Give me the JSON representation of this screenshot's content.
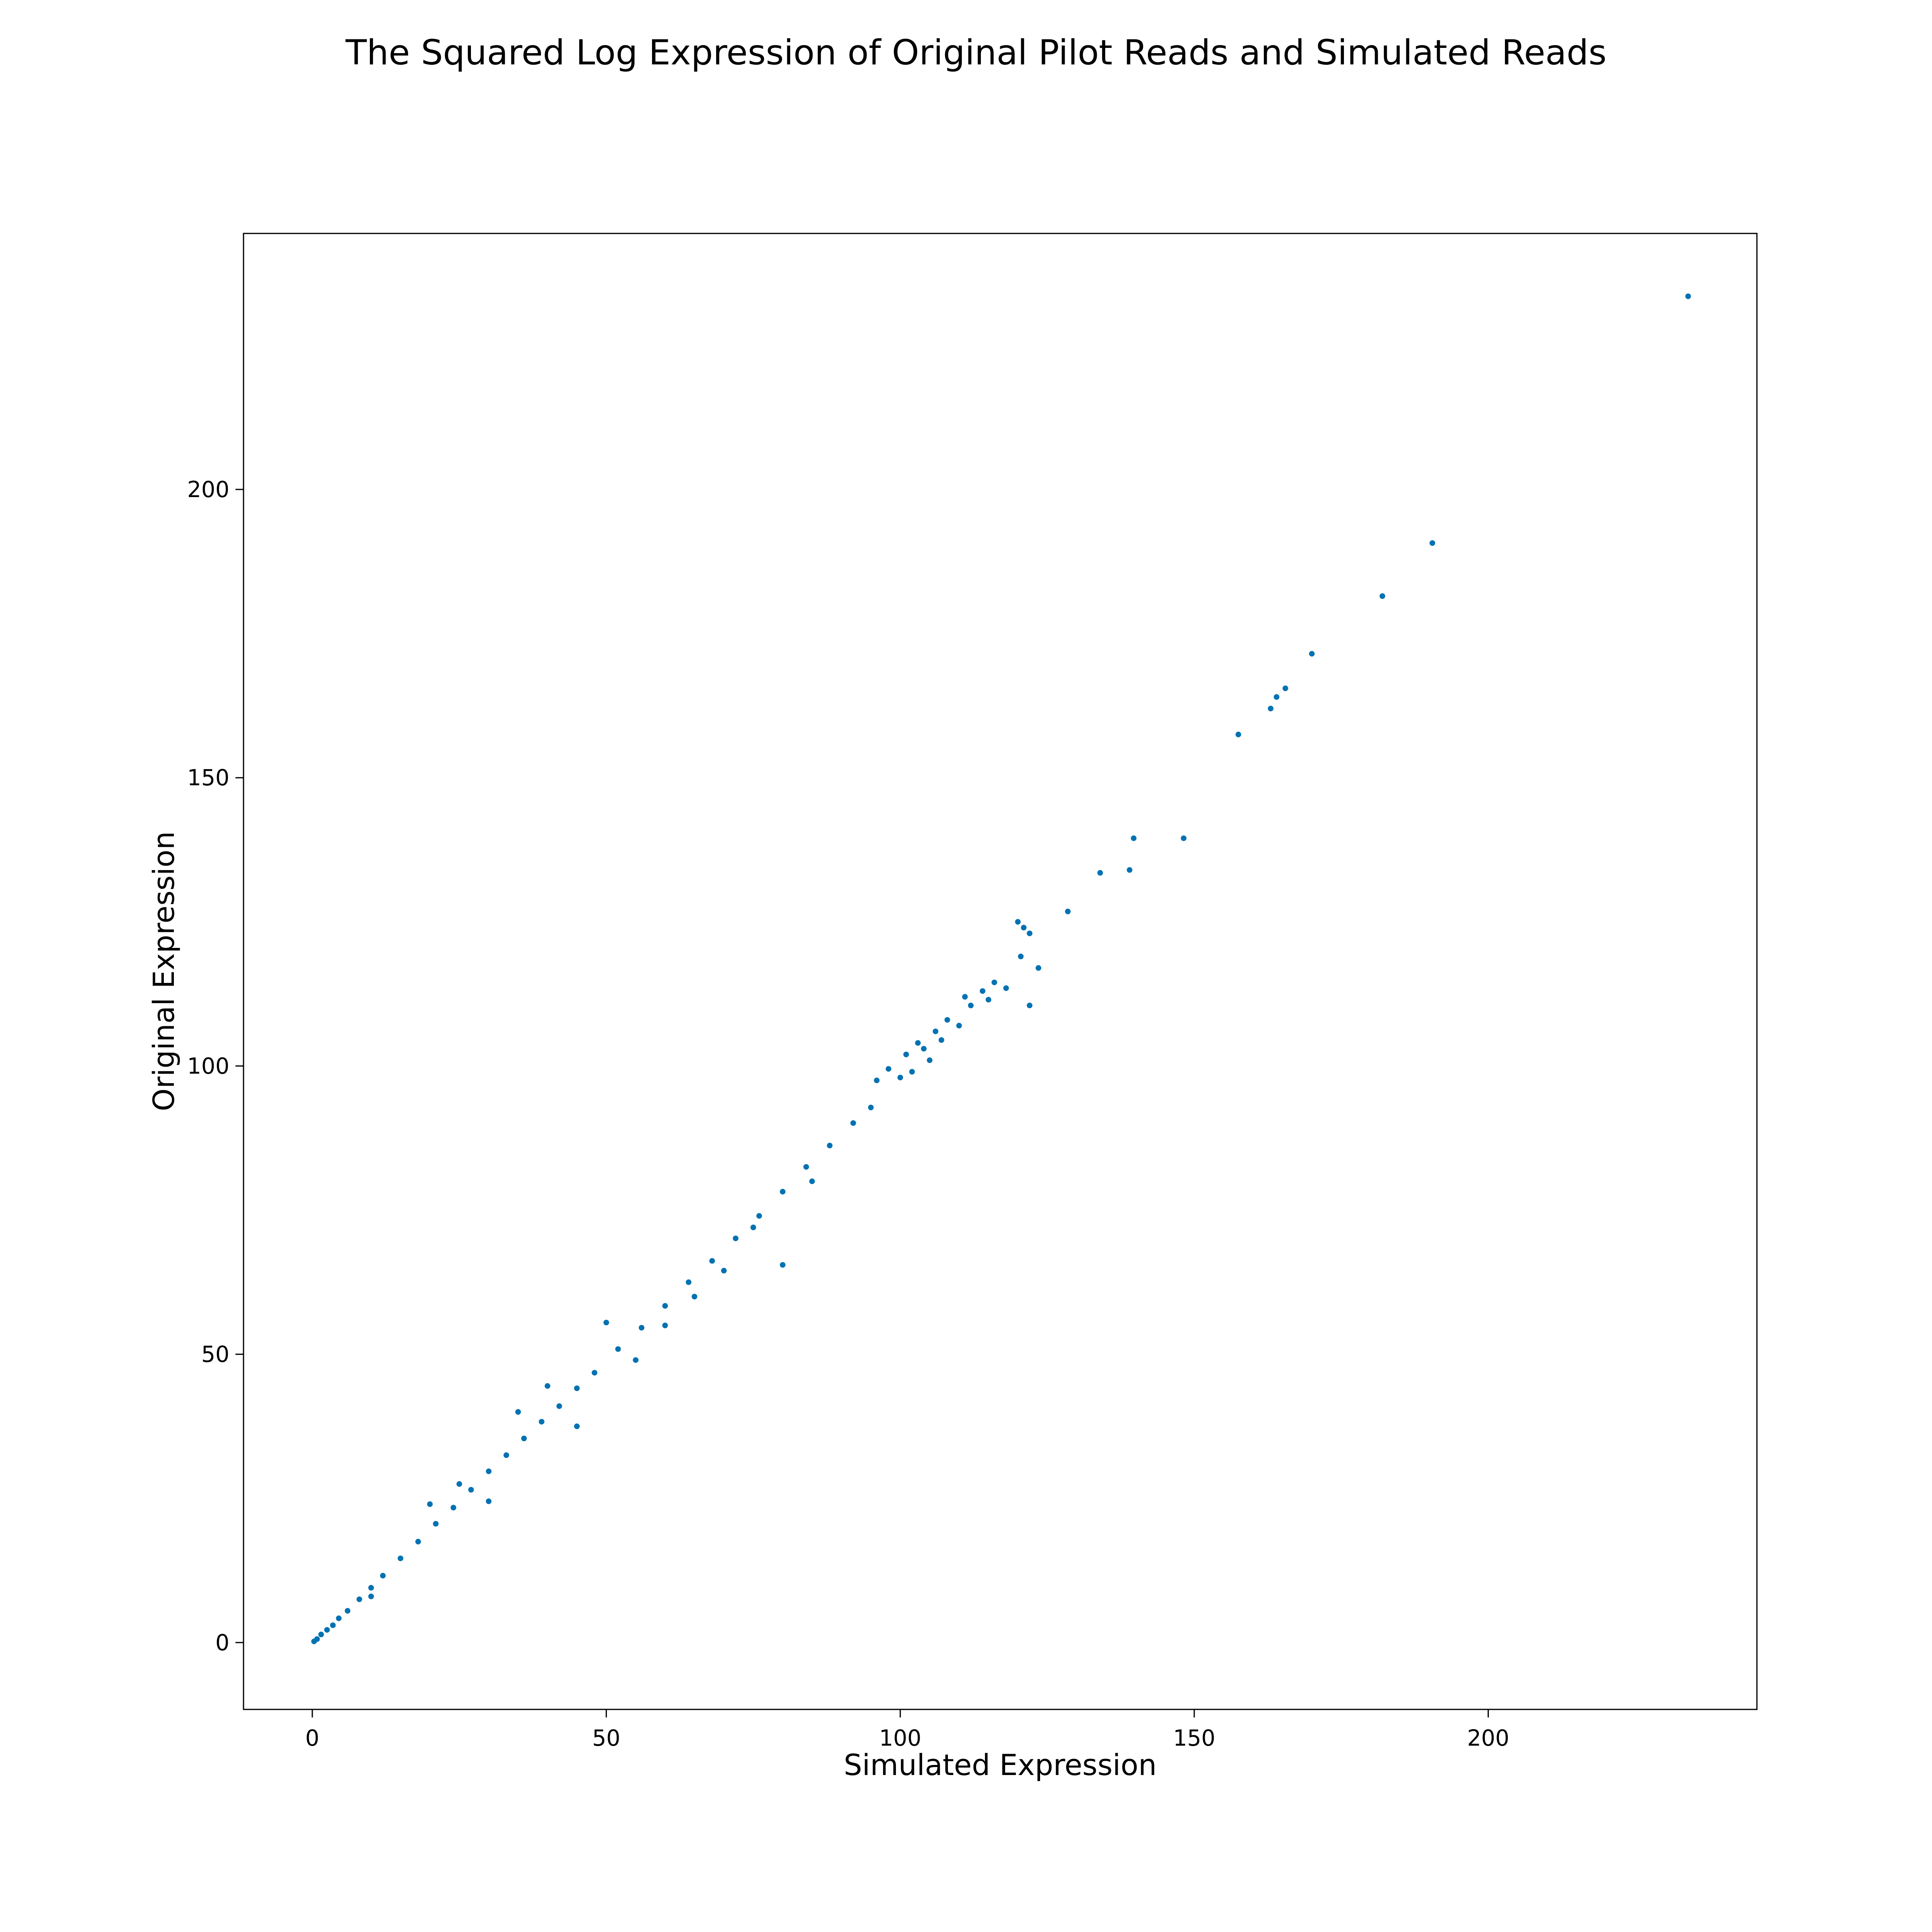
{
  "chart_data": {
    "type": "scatter",
    "title": "The Squared Log Expression of Original Pilot Reads and Simulated Reads",
    "xlabel": "Simulated Expression",
    "ylabel": "Original Expression",
    "xlim": [
      -11.7,
      245.7
    ],
    "ylim": [
      -11.6,
      244.4
    ],
    "xticks": [
      0,
      50,
      100,
      150,
      200
    ],
    "yticks": [
      0,
      50,
      100,
      150,
      200
    ],
    "grid": false,
    "marker_color": "#0072B2",
    "series": [
      {
        "points": [
          [
            0.3,
            0.2
          ],
          [
            0.8,
            0.6
          ],
          [
            1.5,
            1.4
          ],
          [
            2.5,
            2.2
          ],
          [
            3.5,
            3.0
          ],
          [
            4.5,
            4.2
          ],
          [
            6,
            5.5
          ],
          [
            8,
            7.5
          ],
          [
            10,
            9.5
          ],
          [
            12,
            11.6
          ],
          [
            15,
            14.6
          ],
          [
            18,
            17.5
          ],
          [
            21,
            20.6
          ],
          [
            24,
            23.4
          ],
          [
            27,
            26.5
          ],
          [
            30,
            29.7
          ],
          [
            33,
            32.5
          ],
          [
            36,
            35.4
          ],
          [
            39,
            38.3
          ],
          [
            42,
            41.0
          ],
          [
            45,
            44.1
          ],
          [
            48,
            46.8
          ],
          [
            52,
            50.9
          ],
          [
            56,
            54.6
          ],
          [
            60,
            58.4
          ],
          [
            64,
            62.5
          ],
          [
            68,
            66.2
          ],
          [
            72,
            70.1
          ],
          [
            76,
            74.0
          ],
          [
            80,
            78.2
          ],
          [
            84,
            82.5
          ],
          [
            88,
            86.2
          ],
          [
            92,
            90.1
          ],
          [
            95,
            92.8
          ],
          [
            96,
            97.5
          ],
          [
            98,
            99.5
          ],
          [
            100,
            98.0
          ],
          [
            101,
            102.0
          ],
          [
            102,
            99.0
          ],
          [
            103,
            104.0
          ],
          [
            104,
            103.0
          ],
          [
            105,
            101.0
          ],
          [
            106,
            106.0
          ],
          [
            107,
            104.5
          ],
          [
            108,
            108.0
          ],
          [
            110,
            107.0
          ],
          [
            111,
            112.0
          ],
          [
            112,
            110.5
          ],
          [
            114,
            113.0
          ],
          [
            115,
            111.5
          ],
          [
            116,
            114.5
          ],
          [
            118,
            113.5
          ],
          [
            120,
            125.0
          ],
          [
            120.5,
            119.0
          ],
          [
            121,
            124.0
          ],
          [
            122,
            123.0
          ],
          [
            123.5,
            117.0
          ],
          [
            122,
            110.5
          ],
          [
            128.5,
            126.8
          ],
          [
            134,
            133.5
          ],
          [
            139,
            134.0
          ],
          [
            139.7,
            139.5
          ],
          [
            148.2,
            139.5
          ],
          [
            157.5,
            157.5
          ],
          [
            163,
            162.0
          ],
          [
            164,
            164.0
          ],
          [
            165.5,
            165.5
          ],
          [
            170,
            171.5
          ],
          [
            182,
            181.5
          ],
          [
            190.5,
            190.7
          ],
          [
            234,
            233.5
          ],
          [
            30,
            24.5
          ],
          [
            45,
            37.5
          ],
          [
            55,
            49.0
          ],
          [
            60,
            55.0
          ],
          [
            65,
            60.0
          ],
          [
            70,
            64.5
          ],
          [
            80,
            65.5
          ],
          [
            75,
            72.0
          ],
          [
            85,
            80.0
          ],
          [
            20,
            24.0
          ],
          [
            35,
            40.0
          ],
          [
            50,
            55.5
          ],
          [
            10,
            8.0
          ],
          [
            25,
            27.5
          ],
          [
            40,
            44.5
          ]
        ]
      }
    ]
  }
}
